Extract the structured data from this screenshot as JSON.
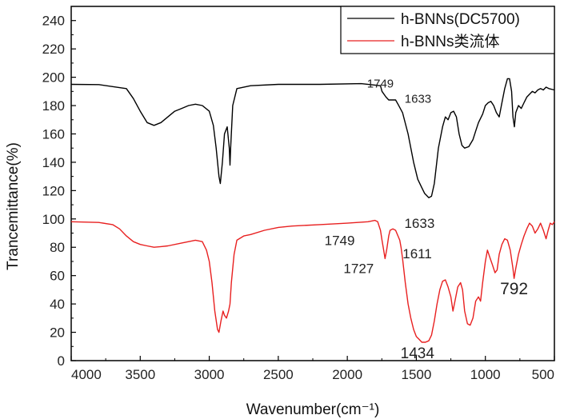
{
  "chart_data": {
    "type": "line",
    "xlabel": "Wavenumber(cm⁻¹)",
    "ylabel": "Trancemittance(%)",
    "xlim": [
      4000,
      500
    ],
    "ylim": [
      0,
      250
    ],
    "x_reversed": true,
    "x_ticks": [
      4000,
      3500,
      3000,
      2500,
      2000,
      1500,
      1000,
      500
    ],
    "y_ticks": [
      0,
      20,
      40,
      60,
      80,
      100,
      120,
      140,
      160,
      180,
      200,
      220,
      240
    ],
    "grid": false,
    "legend_position": "top-right",
    "series": [
      {
        "name": "h-BNNs(DC5700)",
        "color": "#000000",
        "points": [
          [
            4000,
            195
          ],
          [
            3800,
            194.8
          ],
          [
            3600,
            192
          ],
          [
            3550,
            185
          ],
          [
            3500,
            176
          ],
          [
            3450,
            168
          ],
          [
            3400,
            166
          ],
          [
            3350,
            168
          ],
          [
            3300,
            172
          ],
          [
            3250,
            176
          ],
          [
            3200,
            178
          ],
          [
            3150,
            180
          ],
          [
            3100,
            181
          ],
          [
            3050,
            180
          ],
          [
            3000,
            176
          ],
          [
            2970,
            166
          ],
          [
            2950,
            150
          ],
          [
            2930,
            130
          ],
          [
            2920,
            125
          ],
          [
            2905,
            140
          ],
          [
            2890,
            160
          ],
          [
            2870,
            165
          ],
          [
            2855,
            150
          ],
          [
            2850,
            138
          ],
          [
            2845,
            150
          ],
          [
            2830,
            180
          ],
          [
            2800,
            192
          ],
          [
            2700,
            194
          ],
          [
            2500,
            195
          ],
          [
            2200,
            195
          ],
          [
            1900,
            195.5
          ],
          [
            1760,
            194
          ],
          [
            1749,
            190
          ],
          [
            1720,
            186
          ],
          [
            1700,
            184
          ],
          [
            1650,
            184
          ],
          [
            1633,
            181
          ],
          [
            1600,
            175
          ],
          [
            1560,
            160
          ],
          [
            1520,
            140
          ],
          [
            1490,
            128
          ],
          [
            1460,
            122
          ],
          [
            1440,
            118
          ],
          [
            1410,
            115
          ],
          [
            1390,
            116
          ],
          [
            1370,
            125
          ],
          [
            1340,
            150
          ],
          [
            1310,
            165
          ],
          [
            1290,
            172
          ],
          [
            1270,
            170
          ],
          [
            1250,
            175
          ],
          [
            1230,
            176
          ],
          [
            1210,
            172
          ],
          [
            1190,
            160
          ],
          [
            1170,
            152
          ],
          [
            1150,
            150
          ],
          [
            1120,
            151
          ],
          [
            1090,
            156
          ],
          [
            1070,
            162
          ],
          [
            1050,
            168
          ],
          [
            1020,
            174
          ],
          [
            1000,
            180
          ],
          [
            980,
            182
          ],
          [
            960,
            183
          ],
          [
            940,
            180
          ],
          [
            920,
            175
          ],
          [
            900,
            172
          ],
          [
            880,
            182
          ],
          [
            860,
            192
          ],
          [
            840,
            199
          ],
          [
            825,
            199
          ],
          [
            810,
            190
          ],
          [
            800,
            172
          ],
          [
            790,
            165
          ],
          [
            780,
            175
          ],
          [
            760,
            180
          ],
          [
            740,
            178
          ],
          [
            720,
            182
          ],
          [
            700,
            186
          ],
          [
            680,
            188
          ],
          [
            660,
            190
          ],
          [
            640,
            189
          ],
          [
            620,
            191
          ],
          [
            600,
            192
          ],
          [
            580,
            191
          ],
          [
            560,
            193
          ],
          [
            540,
            192
          ],
          [
            500,
            191
          ]
        ]
      },
      {
        "name": "h-BNNs类流体",
        "color": "#e82020",
        "points": [
          [
            4000,
            98
          ],
          [
            3800,
            97.5
          ],
          [
            3700,
            96
          ],
          [
            3650,
            93
          ],
          [
            3600,
            88
          ],
          [
            3550,
            84
          ],
          [
            3500,
            82
          ],
          [
            3450,
            81
          ],
          [
            3400,
            80
          ],
          [
            3350,
            80.5
          ],
          [
            3300,
            81
          ],
          [
            3200,
            83
          ],
          [
            3100,
            85
          ],
          [
            3050,
            84
          ],
          [
            3020,
            78
          ],
          [
            3000,
            70
          ],
          [
            2980,
            55
          ],
          [
            2960,
            35
          ],
          [
            2940,
            22
          ],
          [
            2930,
            20
          ],
          [
            2915,
            28
          ],
          [
            2900,
            35
          ],
          [
            2890,
            32
          ],
          [
            2875,
            30
          ],
          [
            2860,
            35
          ],
          [
            2850,
            40
          ],
          [
            2840,
            55
          ],
          [
            2820,
            75
          ],
          [
            2800,
            85
          ],
          [
            2750,
            88
          ],
          [
            2700,
            89
          ],
          [
            2600,
            92
          ],
          [
            2500,
            94
          ],
          [
            2400,
            95
          ],
          [
            2200,
            96
          ],
          [
            2000,
            97
          ],
          [
            1850,
            98
          ],
          [
            1800,
            99
          ],
          [
            1780,
            98
          ],
          [
            1760,
            92
          ],
          [
            1749,
            85
          ],
          [
            1740,
            80
          ],
          [
            1727,
            72
          ],
          [
            1715,
            78
          ],
          [
            1700,
            88
          ],
          [
            1690,
            92
          ],
          [
            1670,
            93
          ],
          [
            1650,
            92
          ],
          [
            1633,
            88
          ],
          [
            1620,
            85
          ],
          [
            1611,
            80
          ],
          [
            1600,
            72
          ],
          [
            1580,
            55
          ],
          [
            1560,
            40
          ],
          [
            1540,
            30
          ],
          [
            1520,
            22
          ],
          [
            1500,
            17
          ],
          [
            1480,
            15
          ],
          [
            1460,
            13
          ],
          [
            1434,
            13
          ],
          [
            1410,
            14
          ],
          [
            1390,
            18
          ],
          [
            1370,
            28
          ],
          [
            1350,
            40
          ],
          [
            1330,
            50
          ],
          [
            1310,
            56
          ],
          [
            1290,
            57
          ],
          [
            1270,
            52
          ],
          [
            1250,
            45
          ],
          [
            1235,
            35
          ],
          [
            1220,
            42
          ],
          [
            1200,
            52
          ],
          [
            1180,
            55
          ],
          [
            1165,
            50
          ],
          [
            1150,
            35
          ],
          [
            1130,
            26
          ],
          [
            1110,
            25
          ],
          [
            1090,
            30
          ],
          [
            1070,
            42
          ],
          [
            1050,
            45
          ],
          [
            1035,
            42
          ],
          [
            1020,
            55
          ],
          [
            1000,
            70
          ],
          [
            985,
            78
          ],
          [
            965,
            72
          ],
          [
            950,
            68
          ],
          [
            930,
            62
          ],
          [
            915,
            64
          ],
          [
            900,
            75
          ],
          [
            880,
            82
          ],
          [
            860,
            86
          ],
          [
            840,
            85
          ],
          [
            820,
            78
          ],
          [
            800,
            65
          ],
          [
            792,
            58
          ],
          [
            780,
            65
          ],
          [
            760,
            75
          ],
          [
            740,
            82
          ],
          [
            720,
            88
          ],
          [
            700,
            93
          ],
          [
            680,
            97
          ],
          [
            660,
            95
          ],
          [
            640,
            90
          ],
          [
            620,
            93
          ],
          [
            600,
            97
          ],
          [
            580,
            92
          ],
          [
            560,
            86
          ],
          [
            545,
            92
          ],
          [
            530,
            97
          ],
          [
            515,
            96
          ],
          [
            500,
            98
          ]
        ]
      }
    ],
    "annotations": [
      {
        "text": "1749",
        "series": "h-BNNs(DC5700)",
        "x": 1749,
        "y": 190
      },
      {
        "text": "1633",
        "series": "h-BNNs(DC5700)",
        "x": 1633,
        "y": 181
      },
      {
        "text": "1633",
        "series": "h-BNNs类流体",
        "x": 1633,
        "y": 88
      },
      {
        "text": "1749",
        "series": "h-BNNs类流体",
        "x": 1749,
        "y": 85
      },
      {
        "text": "1611",
        "series": "h-BNNs类流体",
        "x": 1611,
        "y": 80
      },
      {
        "text": "1727",
        "series": "h-BNNs类流体",
        "x": 1727,
        "y": 72
      },
      {
        "text": "792",
        "series": "h-BNNs类流体",
        "x": 792,
        "y": 58
      },
      {
        "text": "1434",
        "series": "h-BNNs类流体",
        "x": 1434,
        "y": 13
      }
    ]
  }
}
